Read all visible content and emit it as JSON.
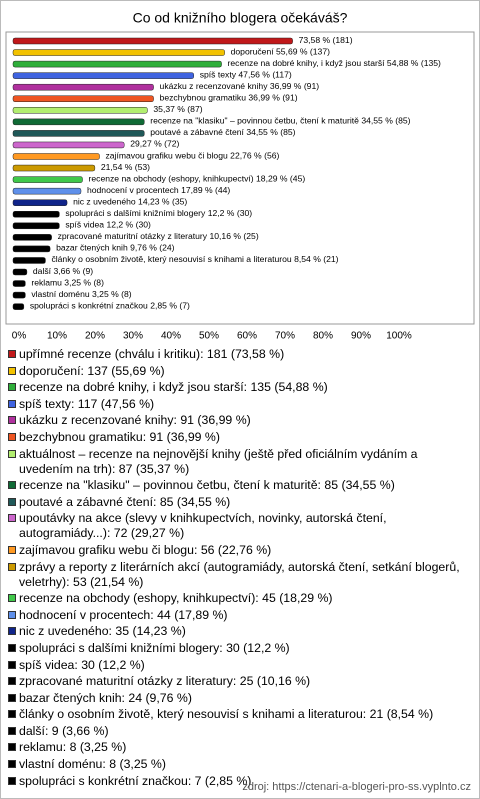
{
  "chart_data": {
    "type": "hbar",
    "title": "Co od knižního blogera očekáváš?",
    "categories": [
      "upřímné recenze (chválu i kritiku): 181 (73,58 %)",
      "doporučení: 137 (55,69 %)",
      "recenze na dobré knihy, i když jsou starší: 135 (54,88 %)",
      "spíš texty: 117 (47,56 %)",
      "ukázku z recenzované knihy: 91 (36,99 %)",
      "bezchybnou gramatiku: 91 (36,99 %)",
      "aktuálnost – recenze na nejnovější knihy (ještě před oficiálním vydáním a uvedením na trh): 87 (35,37 %)",
      "recenze na \"klasiku\" – povinnou četbu, čtení k maturitě: 85 (34,55 %)",
      "poutavé a zábavné čtení: 85 (34,55 %)",
      "upoutávky na akce (slevy v knihkupectvích, novinky, autorská čtení, autogramiády...): 72 (29,27 %)",
      "zajímavou grafiku webu či blogu: 56 (22,76 %)",
      "zprávy a reporty z literárních akcí (autogramiády, autorská čtení, setkání blogerů, veletrhy): 53 (21,54 %)",
      "recenze na obchody (eshopy, knihkupectví): 45 (18,29 %)",
      "hodnocení v procentech: 44 (17,89 %)",
      "nic z uvedeného: 35 (14,23 %)",
      "spolupráci s dalšími knižními blogery: 30 (12,2 %)",
      "spíš videa: 30 (12,2 %)",
      "zpracované maturitní otázky z literatury: 25 (10,16 %)",
      "bazar čtených knih: 24 (9,76 %)",
      "články o osobním životě, který nesouvisí s knihami a literaturou: 21 (8,54 %)",
      "další: 9 (3,66 %)",
      "reklamu: 8 (3,25 %)",
      "vlastní doménu: 8 (3,25 %)",
      "spolupráci s konkrétní značkou: 7 (2,85 %)"
    ],
    "values": [
      73.58,
      55.69,
      54.88,
      47.56,
      36.99,
      36.99,
      35.37,
      34.55,
      34.55,
      29.27,
      22.76,
      21.54,
      18.29,
      17.89,
      14.23,
      12.2,
      12.2,
      10.16,
      9.76,
      8.54,
      3.66,
      3.25,
      3.25,
      2.85
    ],
    "value_labels": [
      "73,58 % (181)",
      "doporučení 55,69 % (137)",
      "recenze na dobré knihy, i když jsou starší 54,88 % (135)",
      "spíš texty 47,56 % (117)",
      "ukázku z recenzované knihy 36,99 % (91)",
      "bezchybnou gramatiku 36,99 % (91)",
      "35,37 % (87)",
      "recenze na \"klasiku\" – povinnou četbu, čtení k maturitě 34,55 % (85)",
      "poutavé a zábavné čtení 34,55 % (85)",
      "29,27 % (72)",
      "zajímavou grafiku webu či blogu 22,76 % (56)",
      "21,54 % (53)",
      "recenze na obchody (eshopy, knihkupectví) 18,29 % (45)",
      "hodnocení v procentech 17,89 % (44)",
      "nic z uvedeného 14,23 % (35)",
      "spolupráci s dalšími knižními blogery 12,2 % (30)",
      "spíš videa 12,2 % (30)",
      "zpracované maturitní otázky z literatury 10,16 % (25)",
      "bazar čtených knih 9,76 % (24)",
      "články o osobním životě, který nesouvisí s knihami a literaturou 8,54 % (21)",
      "další 3,66 % (9)",
      "reklamu 3,25 % (8)",
      "vlastní doménu 3,25 % (8)",
      "spolupráci s konkrétní značkou 2,85 % (7)"
    ],
    "colors": [
      "#c0181a",
      "#f2c200",
      "#2fae3a",
      "#3f63e0",
      "#b0309e",
      "#ee5522",
      "#b2ee70",
      "#0f6a35",
      "#1f5858",
      "#cc66cc",
      "#ff9922",
      "#cc9a00",
      "#40c84a",
      "#5f90ea",
      "#10248a",
      "#000000",
      "#000000",
      "#000000",
      "#000000",
      "#000000",
      "#000000",
      "#000000",
      "#000000",
      "#000000"
    ],
    "xlim": [
      0,
      100
    ],
    "xticks": [
      {
        "value": 0,
        "label": "0%"
      },
      {
        "value": 10,
        "label": "10%"
      },
      {
        "value": 20,
        "label": "20%"
      },
      {
        "value": 30,
        "label": "30%"
      },
      {
        "value": 40,
        "label": "40%"
      },
      {
        "value": 50,
        "label": "50%"
      },
      {
        "value": 60,
        "label": "60%"
      },
      {
        "value": 70,
        "label": "70%"
      },
      {
        "value": 80,
        "label": "80%"
      },
      {
        "value": 90,
        "label": "90%"
      },
      {
        "value": 100,
        "label": "100%"
      }
    ],
    "grid": false,
    "source": "zdroj: https://ctenari-a-blogeri-pro-ss.vyplnto.cz"
  }
}
